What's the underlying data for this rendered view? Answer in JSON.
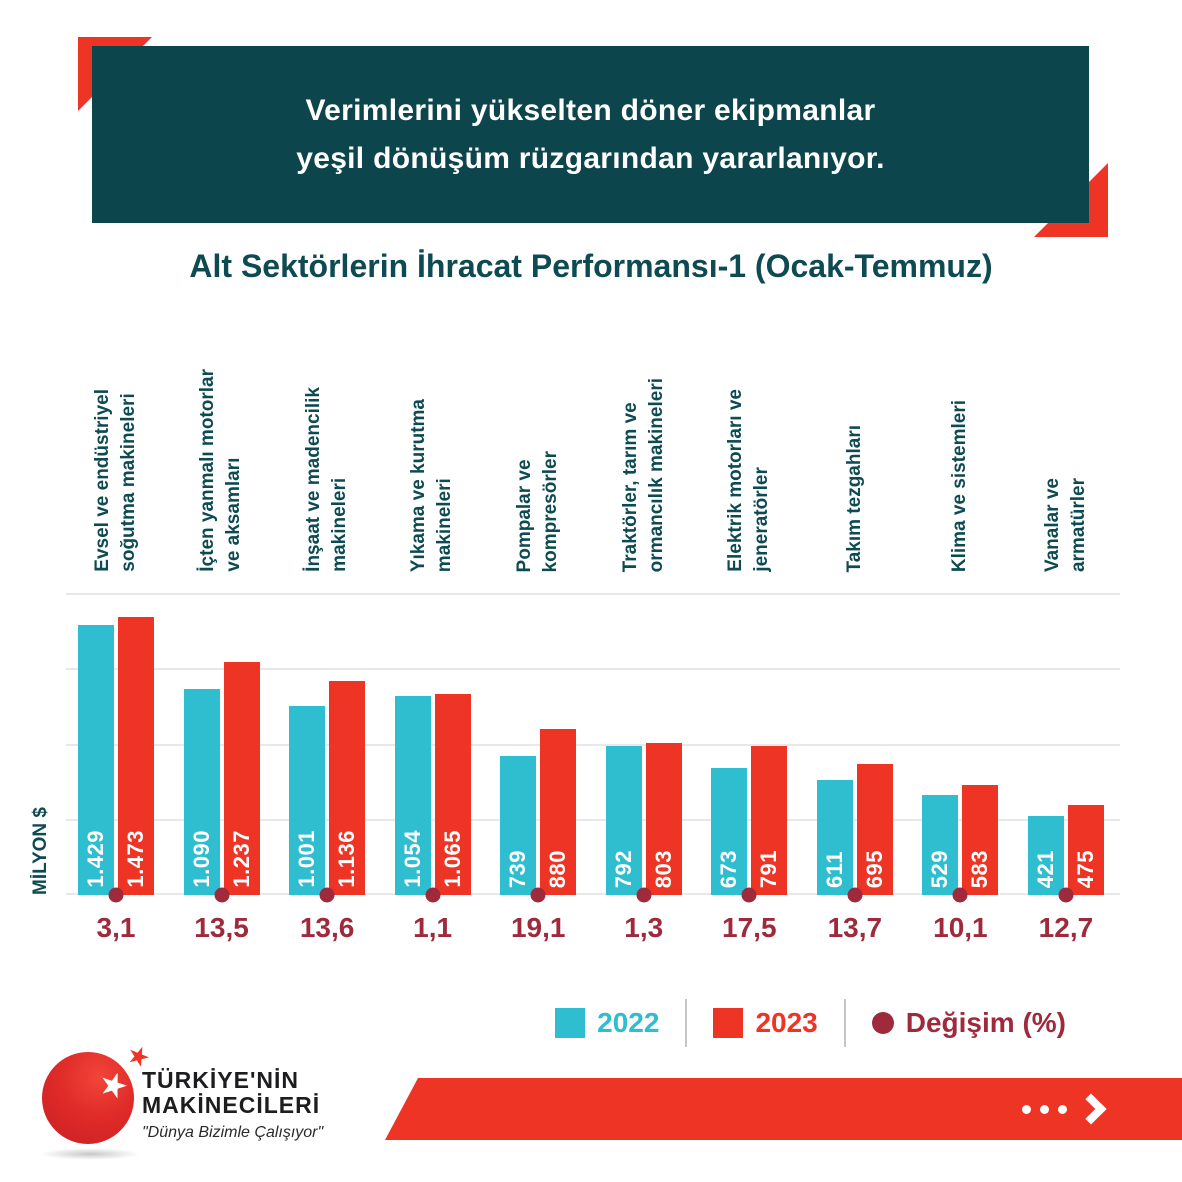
{
  "header": {
    "line1": "Verimlerini yükselten döner ekipmanlar",
    "line2": "yeşil dönüşüm rüzgarından yararlanıyor.",
    "bg_color": "#0d454c",
    "accent_color": "#ee3425"
  },
  "title": "Alt Sektörlerin İhracat Performansı-1 (Ocak-Temmuz)",
  "chart_data": {
    "type": "bar",
    "title": "Alt Sektörlerin İhracat Performansı-1 (Ocak-Temmuz)",
    "ylabel": "MİLYON $",
    "ymax": 1600,
    "grid_step": 400,
    "grid": true,
    "legend_position": "bottom-right",
    "categories": [
      "Evsel ve endüstriyel soğutma makineleri",
      "İçten yanmalı motorlar ve aksamları",
      "İnşaat ve madencilik makineleri",
      "Yıkama ve kurutma makineleri",
      "Pompalar ve kompresörler",
      "Traktörler, tarım ve ormancılık makineleri",
      "Elektrik motorları ve jeneratörler",
      "Takım tezgahları",
      "Klima ve sistemleri",
      "Vanalar ve armatürler"
    ],
    "category_label_lines": [
      "Evsel ve endüstriyel\nsoğutma makineleri",
      "İçten yanmalı motorlar\nve aksamları",
      "İnşaat ve madencilik\nmakineleri",
      "Yıkama ve kurutma\nmakineleri",
      "Pompalar ve\nkompresörler",
      "Traktörler, tarım ve\normancılık makineleri",
      "Elektrik motorları ve\njeneratörler",
      "Takım tezgahları",
      "Klima ve sistemleri",
      "Vanalar ve\narmatürler"
    ],
    "series": [
      {
        "name": "2022",
        "color": "#2fbdd0",
        "values": [
          1429,
          1090,
          1001,
          1054,
          739,
          792,
          673,
          611,
          529,
          421
        ]
      },
      {
        "name": "2023",
        "color": "#ee3425",
        "values": [
          1473,
          1237,
          1136,
          1065,
          880,
          803,
          791,
          695,
          583,
          475
        ]
      }
    ],
    "change": {
      "name": "Değişim (%)",
      "color": "#9e2a3c",
      "values": [
        3.1,
        13.5,
        13.6,
        1.1,
        19.1,
        1.3,
        17.5,
        13.7,
        10.1,
        12.7
      ]
    }
  },
  "footer": {
    "brand_line1": "TÜRKİYE'NİN",
    "brand_line2": "MAKİNECİLERİ",
    "tagline": "\"Dünya Bizimle Çalışıyor\"",
    "banner_color": "#ee3425"
  },
  "icons": {
    "logo_star": "star-icon",
    "next_arrow": "dots-chevron-right-icon"
  }
}
